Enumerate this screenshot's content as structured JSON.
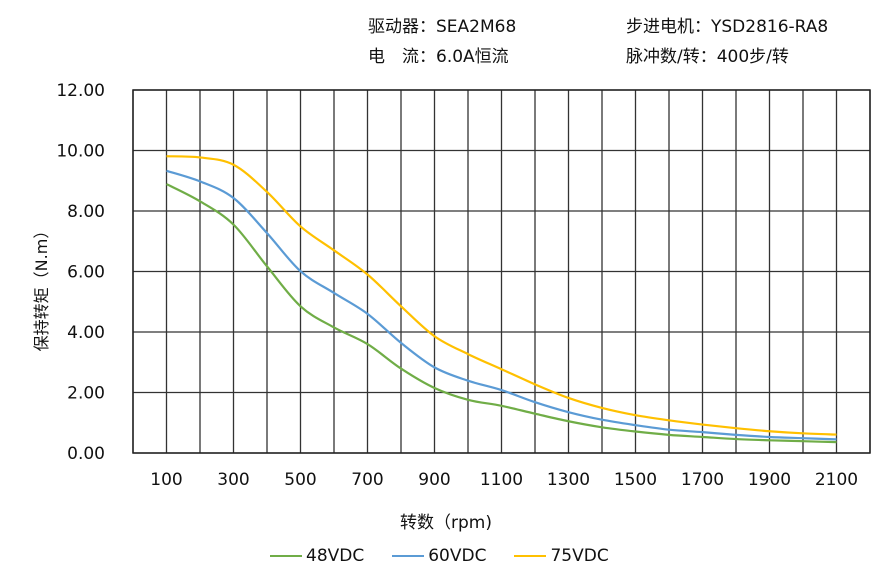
{
  "header": {
    "driver": "驱动器：SEA2M68",
    "motor": "步进电机：YSD2816-RA8",
    "current": "电　流：6.0A恒流",
    "pulses": "脉冲数/转：400步/转"
  },
  "chart_data": {
    "type": "line",
    "xlabel": "转数（rpm)",
    "ylabel": "保持转矩（N.m）",
    "x": [
      100,
      200,
      300,
      400,
      500,
      600,
      700,
      800,
      900,
      1000,
      1100,
      1200,
      1300,
      1400,
      1500,
      1600,
      1700,
      1800,
      1900,
      2000,
      2100
    ],
    "xlim": [
      0,
      2200
    ],
    "ylim": [
      0,
      12
    ],
    "x_ticks": [
      "100",
      "300",
      "500",
      "700",
      "900",
      "1100",
      "1300",
      "1500",
      "1700",
      "1900",
      "2100"
    ],
    "y_ticks": [
      "0.00",
      "2.00",
      "4.00",
      "6.00",
      "8.00",
      "10.00",
      "12.00"
    ],
    "grid": true,
    "legend_position": "bottom",
    "series": [
      {
        "name": "48VDC",
        "color": "#70AD47",
        "values": [
          8.89,
          8.32,
          7.55,
          6.17,
          4.85,
          4.15,
          3.6,
          2.79,
          2.15,
          1.76,
          1.56,
          1.3,
          1.05,
          0.85,
          0.71,
          0.6,
          0.53,
          0.46,
          0.42,
          0.39,
          0.36
        ]
      },
      {
        "name": "60VDC",
        "color": "#5B9BD5",
        "values": [
          9.33,
          8.98,
          8.43,
          7.27,
          6.01,
          5.29,
          4.6,
          3.64,
          2.83,
          2.39,
          2.08,
          1.68,
          1.35,
          1.1,
          0.92,
          0.77,
          0.69,
          0.6,
          0.53,
          0.49,
          0.45
        ]
      },
      {
        "name": "75VDC",
        "color": "#FFC000",
        "values": [
          9.81,
          9.77,
          9.53,
          8.63,
          7.49,
          6.7,
          5.9,
          4.85,
          3.86,
          3.27,
          2.77,
          2.27,
          1.82,
          1.49,
          1.25,
          1.08,
          0.94,
          0.82,
          0.72,
          0.65,
          0.61
        ]
      }
    ]
  }
}
